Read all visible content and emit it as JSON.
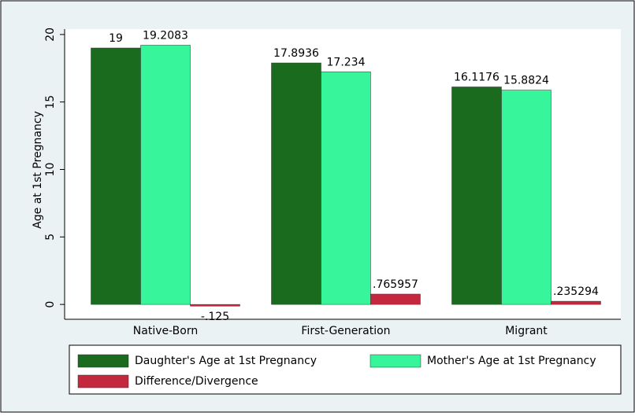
{
  "chart_data": {
    "type": "bar",
    "y_label": "Age at 1st Pregnancy",
    "categories": [
      "Native-Born",
      "First-Generation",
      "Migrant"
    ],
    "series": [
      {
        "name": "Daughter's Age at 1st Pregnancy",
        "color": "#1b6b1f",
        "values": [
          19,
          17.8936,
          16.1176
        ],
        "value_labels": [
          "19",
          "17.8936",
          "16.1176"
        ]
      },
      {
        "name": "Mother's Age at 1st Pregnancy",
        "color": "#36f59a",
        "values": [
          19.2083,
          17.234,
          15.8824
        ],
        "value_labels": [
          "19.2083",
          "17.234",
          "15.8824"
        ]
      },
      {
        "name": "Difference/Divergence",
        "color": "#c3283e",
        "values": [
          -0.125,
          0.765957,
          0.235294
        ],
        "value_labels": [
          "-.125",
          ".765957",
          ".235294"
        ]
      }
    ],
    "ylim": [
      -1.1,
      20.4
    ],
    "yticks": [
      0,
      5,
      10,
      15,
      20
    ],
    "grid": false
  }
}
